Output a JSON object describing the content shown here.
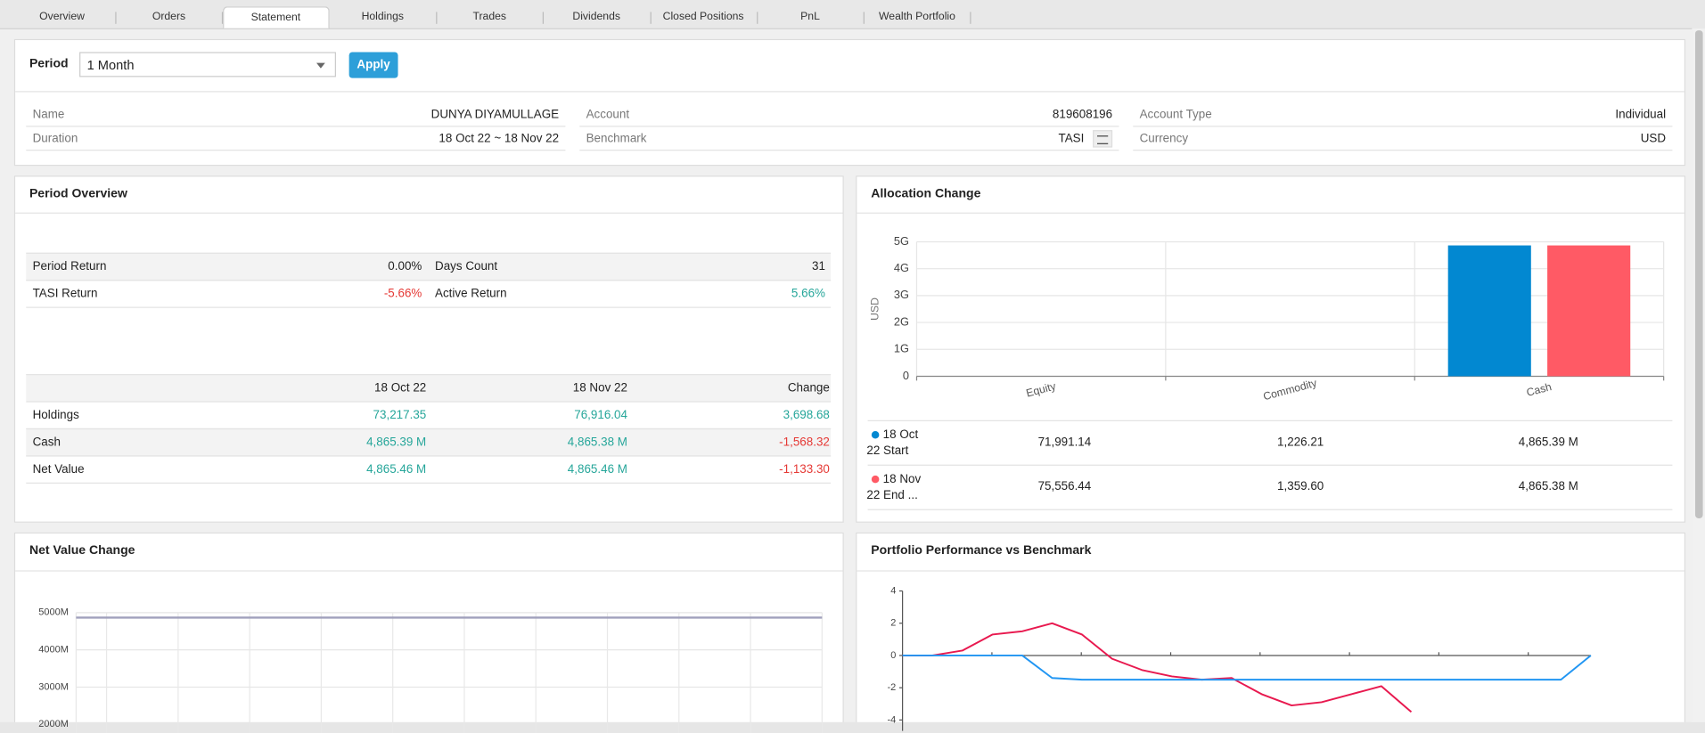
{
  "tabs": [
    "Overview",
    "Orders",
    "Statement",
    "Holdings",
    "Trades",
    "Dividends",
    "Closed Positions",
    "PnL",
    "Wealth Portfolio"
  ],
  "active_tab": 2,
  "filter": {
    "label": "Period",
    "selected": "1 Month",
    "button": "Apply"
  },
  "account_info": [
    [
      {
        "label": "Name",
        "value": "DUNYA DIYAMULLAGE"
      },
      {
        "label": "Duration",
        "value": "18 Oct 22 ~ 18 Nov 22"
      }
    ],
    [
      {
        "label": "Account",
        "value": "819608196"
      },
      {
        "label": "Benchmark",
        "value": "TASI"
      }
    ],
    [
      {
        "label": "Account Type",
        "value": "Individual"
      },
      {
        "label": "Currency",
        "value": "USD"
      }
    ]
  ],
  "period_overview": {
    "title": "Period Overview",
    "returns": [
      [
        {
          "label": "Period Return",
          "value": "0.00%",
          "color": "#222222"
        },
        {
          "label": "Days Count",
          "value": "31",
          "color": "#222222"
        }
      ],
      [
        {
          "label": "TASI Return",
          "value": "-5.66%",
          "color": "#e53935"
        },
        {
          "label": "Active Return",
          "value": "5.66%",
          "color": "#26a69a"
        }
      ]
    ],
    "columns": [
      "18 Oct 22",
      "18 Nov 22",
      "Change"
    ],
    "rows": [
      {
        "label": "Holdings",
        "cells": [
          "73,217.35",
          "76,916.04",
          "3,698.68"
        ],
        "colors": [
          "#26a69a",
          "#26a69a",
          "#26a69a"
        ]
      },
      {
        "label": "Cash",
        "cells": [
          "4,865.39 M",
          "4,865.38 M",
          "-1,568.32"
        ],
        "colors": [
          "#26a69a",
          "#26a69a",
          "#e53935"
        ]
      },
      {
        "label": "Net Value",
        "cells": [
          "4,865.46 M",
          "4,865.46 M",
          "-1,133.30"
        ],
        "colors": [
          "#26a69a",
          "#26a69a",
          "#e53935"
        ]
      }
    ]
  },
  "chart_data": [
    {
      "type": "bar",
      "title": "Allocation Change",
      "y_label": "USD",
      "categories": [
        "Equity",
        "Commodity",
        "Cash"
      ],
      "series": [
        {
          "name": "18 Oct 22 Start",
          "color": "#0288d1",
          "values": [
            71991.14,
            1226.21,
            4865390000
          ],
          "value_labels": [
            "71,991.14",
            "1,226.21",
            "4,865.39 M"
          ]
        },
        {
          "name": "18 Nov 22 End ...",
          "color": "#ff5a65",
          "values": [
            75556.44,
            1359.6,
            4865380000
          ],
          "value_labels": [
            "75,556.44",
            "1,359.60",
            "4,865.38 M"
          ]
        }
      ],
      "ylim": [
        0,
        5000000000
      ],
      "yticks": [
        0,
        {
          "value": 1000000000,
          "label": "1G"
        },
        {
          "value": 2000000000,
          "label": "2G"
        },
        {
          "value": 3000000000,
          "label": "3G"
        },
        {
          "value": 4000000000,
          "label": "4G"
        },
        {
          "value": 5000000000,
          "label": "5G"
        }
      ],
      "grid": true
    },
    {
      "type": "line",
      "title": "Net Value Change",
      "series": [
        {
          "color": "#a0a0bc",
          "values": [
            4865.39,
            4865.46
          ]
        }
      ],
      "ylim": [
        2000,
        5000
      ],
      "yticks": [
        {
          "value": 5000,
          "label": "5000M"
        },
        {
          "value": 4000,
          "label": "4000M"
        },
        {
          "value": 3000,
          "label": "3000M"
        },
        {
          "value": 2000,
          "label": "2000M"
        }
      ],
      "grid": true
    },
    {
      "type": "line",
      "title": "Portfolio Performance vs Benchmark",
      "series": [
        {
          "color": "#e8194f",
          "values": [
            0,
            0,
            0.3,
            1.3,
            1.5,
            2.0,
            1.3,
            -0.2,
            -0.9,
            -1.3,
            -1.5,
            -1.4,
            -2.4,
            -3.1,
            -2.9,
            -2.4,
            -1.9,
            -3.5,
            null,
            null,
            null,
            null,
            null,
            null
          ]
        },
        {
          "color": "#2196f3",
          "values": [
            0,
            0,
            0,
            0,
            0,
            -1.4,
            -1.5,
            -1.5,
            -1.5,
            -1.5,
            -1.5,
            -1.5,
            -1.5,
            -1.5,
            -1.5,
            -1.5,
            -1.5,
            -1.5,
            -1.5,
            -1.5,
            -1.5,
            -1.5,
            -1.5,
            0
          ]
        }
      ],
      "ylim": [
        -4,
        4
      ],
      "yticks": [
        4,
        2,
        0,
        -2,
        -4
      ],
      "grid": false
    }
  ]
}
